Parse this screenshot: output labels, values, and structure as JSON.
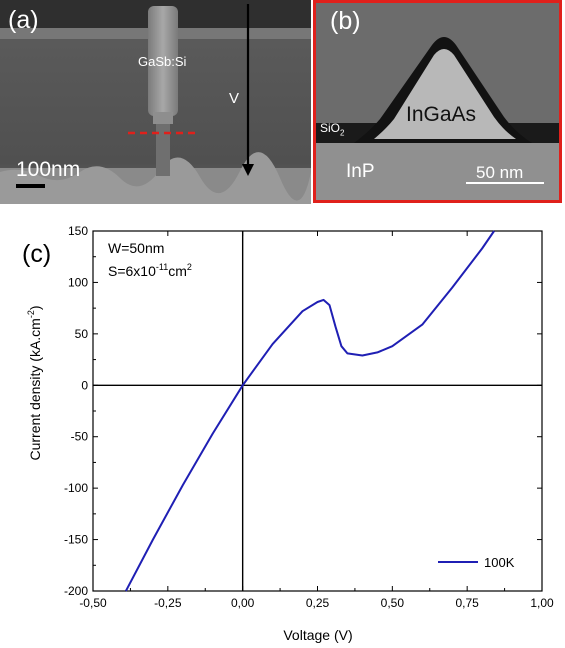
{
  "panel_a": {
    "letter": "(a)",
    "label_material": "GaSb:Si",
    "label_arrow": "V",
    "scale_bar": "100nm"
  },
  "panel_b": {
    "letter": "(b)",
    "label_top": "InGaAs",
    "label_oxide_main": "SiO",
    "label_oxide_sub": "2",
    "label_substrate": "InP",
    "scale_bar": "50 nm",
    "border_color": "#e0201b"
  },
  "chart_data": {
    "type": "line",
    "panel_letter": "(c)",
    "xlabel": "Voltage (V)",
    "ylabel": "Current density (kA.cm",
    "ylabel_sup": "-2",
    "ylabel_tail": ")",
    "xlim": [
      -0.5,
      1.0
    ],
    "ylim": [
      -200,
      150
    ],
    "x_ticks": [
      -0.5,
      -0.25,
      0.0,
      0.25,
      0.5,
      0.75,
      1.0
    ],
    "x_tick_labels": [
      "-0,50",
      "-0,25",
      "0,00",
      "0,25",
      "0,50",
      "0,75",
      "1,00"
    ],
    "y_ticks": [
      -200,
      -150,
      -100,
      -50,
      0,
      50,
      100,
      150
    ],
    "y_tick_labels": [
      "-200",
      "-150",
      "-100",
      "-50",
      "0",
      "50",
      "100",
      "150"
    ],
    "annotation_line1": "W=50nm",
    "annotation_line2_main": "S=6x10",
    "annotation_line2_exp": "-11",
    "annotation_line2_unit": "cm",
    "annotation_line2_unit_exp": "2",
    "series": [
      {
        "name": "100K",
        "color": "#1f1fb4",
        "x": [
          -0.39,
          -0.3,
          -0.2,
          -0.1,
          0.0,
          0.1,
          0.2,
          0.25,
          0.27,
          0.29,
          0.31,
          0.33,
          0.35,
          0.4,
          0.45,
          0.5,
          0.6,
          0.7,
          0.8,
          0.84
        ],
        "y": [
          -200,
          -150,
          -97,
          -47,
          0,
          40,
          72,
          81,
          83,
          78,
          57,
          38,
          31,
          29,
          32,
          38,
          59,
          95,
          133,
          150
        ]
      }
    ],
    "legend_position": "bottom-right",
    "zero_lines": true,
    "grid": false
  }
}
